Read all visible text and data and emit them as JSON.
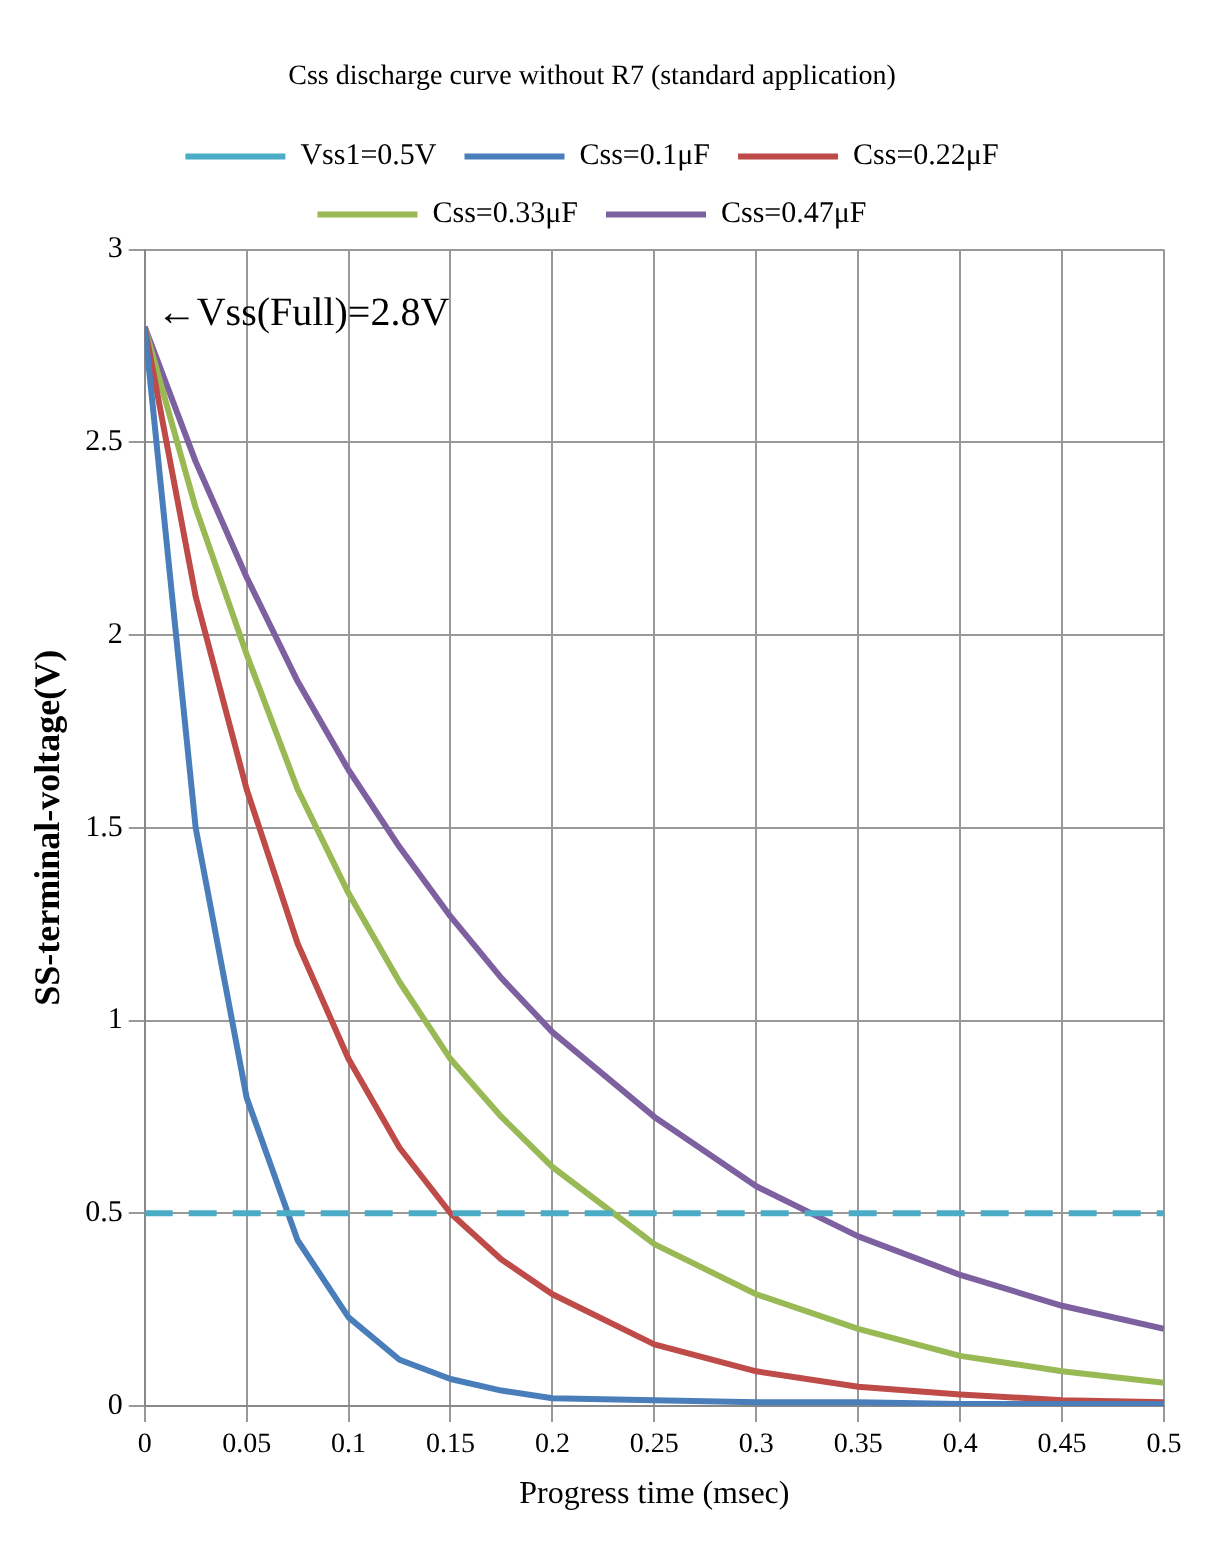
{
  "chart_data": {
    "type": "line",
    "title": "Css discharge curve without R7 (standard application)",
    "xlabel": "Progress time (msec)",
    "ylabel": "SS-terminal-voltage(V)",
    "x": [
      0,
      0.025,
      0.05,
      0.075,
      0.1,
      0.125,
      0.15,
      0.175,
      0.2,
      0.25,
      0.3,
      0.35,
      0.4,
      0.45,
      0.5
    ],
    "series": [
      {
        "name": "Css=0.1μF",
        "color": "#4a7ebb",
        "values": [
          2.8,
          1.5,
          0.8,
          0.43,
          0.23,
          0.12,
          0.07,
          0.04,
          0.02,
          0.015,
          0.01,
          0.01,
          0.005,
          0.005,
          0.005
        ]
      },
      {
        "name": "Css=0.22μF",
        "color": "#be4b48",
        "values": [
          2.8,
          2.1,
          1.6,
          1.2,
          0.9,
          0.67,
          0.5,
          0.38,
          0.29,
          0.16,
          0.09,
          0.05,
          0.03,
          0.015,
          0.01
        ]
      },
      {
        "name": "Css=0.33μF",
        "color": "#98b954",
        "values": [
          2.8,
          2.33,
          1.95,
          1.6,
          1.33,
          1.1,
          0.9,
          0.75,
          0.62,
          0.42,
          0.29,
          0.2,
          0.13,
          0.09,
          0.06
        ]
      },
      {
        "name": "Css=0.47μF",
        "color": "#7d60a0",
        "values": [
          2.8,
          2.45,
          2.15,
          1.88,
          1.65,
          1.45,
          1.27,
          1.11,
          0.97,
          0.75,
          0.57,
          0.44,
          0.34,
          0.26,
          0.2
        ]
      }
    ],
    "ref_lines": [
      {
        "axis": "y",
        "value": 0.5,
        "label": "Vss1=0.5V",
        "color": "#4bacc6",
        "line_style": "dashed"
      }
    ],
    "annotations": [
      {
        "text": "←Vss(Full)=2.8V",
        "x": 0,
        "y": 2.8
      }
    ],
    "xlim": [
      0,
      0.5
    ],
    "xticks": [
      0,
      0.05,
      0.1,
      0.15,
      0.2,
      0.25,
      0.3,
      0.35,
      0.4,
      0.45,
      0.5
    ],
    "ylim": [
      0,
      3
    ],
    "yticks": [
      0,
      0.5,
      1,
      1.5,
      2,
      2.5,
      3
    ],
    "grid": true,
    "legend": "top",
    "marker": "none",
    "line_style": "solid"
  }
}
